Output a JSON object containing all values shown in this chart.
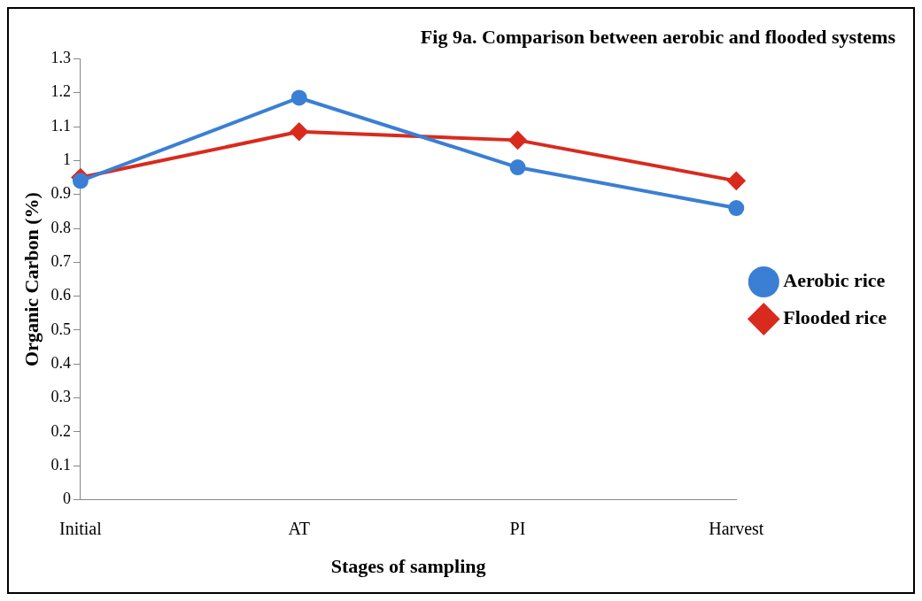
{
  "chart_data": {
    "type": "line",
    "title": "Fig 9a. Comparison between aerobic and flooded systems",
    "xlabel": "Stages of sampling",
    "ylabel": "Organic Carbon (%)",
    "categories": [
      "Initial",
      "AT",
      "PI",
      "Harvest"
    ],
    "series": [
      {
        "name": "Aerobic rice",
        "color": "#3b7fd4",
        "values": [
          0.94,
          1.185,
          0.98,
          0.86
        ],
        "marker": "circle"
      },
      {
        "name": "Flooded rice",
        "color": "#d92a1e",
        "values": [
          0.95,
          1.085,
          1.06,
          0.94
        ],
        "marker": "diamond"
      }
    ],
    "ylim": [
      0,
      1.3
    ],
    "yticks": [
      0,
      0.1,
      0.2,
      0.3,
      0.4,
      0.5,
      0.6,
      0.7,
      0.8,
      0.9,
      1,
      1.1,
      1.2,
      1.3
    ],
    "grid": false,
    "legend": "right",
    "line_style": "solid"
  }
}
